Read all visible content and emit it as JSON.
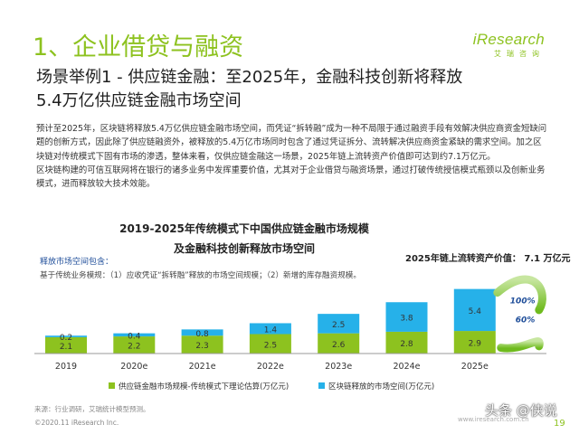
{
  "page": {
    "section_title": "1、企业借贷与融资",
    "logo_main": "iResearch",
    "logo_sub": "艾瑞咨询",
    "headline_line1": "场景举例1 - 供应链金融：至2025年，金融科技创新将释放",
    "headline_line2": "5.4万亿供应链金融市场空间",
    "body_text": "预计至2025年，区块链将释放5.4万亿供应链金融市场空间，而凭证“拆转融”成为一种不局限于通过融资手段有效解决供应商资金短缺问题的创新方式，因此除了供应链融资外，被释放的5.4万亿市场同时包含了通过凭证拆分、流转解决供应商资金紧缺的需求空间。加之区块链对传统模式下固有市场的渗透，整体来看，仅供应链金融这一场景，2025年链上流转资产价值即可达到约7.1万亿元。\n区块链构建的可信互联网将在银行的诸多业务中发挥重要价值，尤其对于企业借贷与融资场景，通过打破传统授信模式瓶颈以及创新业务模式，进而释放较大技术效能。",
    "chart_title_line1": "2019-2025年传统模式下中国供应链金融市场规模",
    "chart_title_line2": "及金融科技创新释放市场空间",
    "desc_title": "释放市场空间包含：",
    "desc_body": "基于传统业务模规：（1）应收凭证“拆转融”释放的市场空间规模；（2）新增的库存融资规模。",
    "tx_value": "2025年链上流转资产价值：  7.1 万亿元",
    "footer_source": "来源：行业调研，艾瑞统计模型预测。",
    "footer_copy": "©2020.11 iResearch Inc.",
    "footer_url": "www.iresearch.com.cn",
    "page_number": "19",
    "watermark": "头条 @侠说"
  },
  "chart_data": {
    "type": "bar",
    "stacked": true,
    "categories": [
      "2019",
      "2020e",
      "2021e",
      "2022e",
      "2023e",
      "2024e",
      "2025e"
    ],
    "series": [
      {
        "name": "供应链金融市场规模-传统模式下理论估算(万亿元)",
        "values": [
          2.1,
          2.2,
          2.3,
          2.5,
          2.6,
          2.8,
          2.9
        ],
        "color": "#8dc21f"
      },
      {
        "name": "区块链释放的市场空间(万亿元)",
        "values": [
          0.2,
          0.4,
          0.8,
          1.4,
          2.5,
          3.8,
          5.4
        ],
        "color": "#26b1e9"
      }
    ],
    "annotations": [
      {
        "text": "100%",
        "series": "区块链释放的市场空间(万亿元)"
      },
      {
        "text": "60%",
        "series": "供应链金融市场规模-传统模式下理论估算(万亿元)"
      }
    ],
    "legend_position": "bottom",
    "ylim": [
      0,
      9
    ],
    "grid": false
  }
}
